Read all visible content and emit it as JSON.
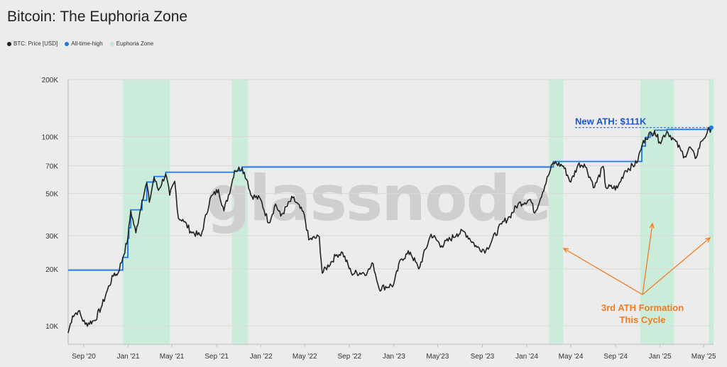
{
  "title": "Bitcoin: The Euphoria Zone",
  "legend": [
    {
      "label": "BTC: Price [USD]",
      "color": "#222222"
    },
    {
      "label": "All-time-high",
      "color": "#1e78e6"
    },
    {
      "label": "Euphoria Zone",
      "color": "#bfe8d2"
    }
  ],
  "watermark": "glassnode",
  "chart_data": {
    "type": "line",
    "title": "Bitcoin: The Euphoria Zone",
    "yscale": "log",
    "ylim": [
      8000,
      200000
    ],
    "xlim": [
      "2020-07-20",
      "2025-05-28"
    ],
    "y_ticks": [
      {
        "v": 10000,
        "label": "10K"
      },
      {
        "v": 20000,
        "label": "20K"
      },
      {
        "v": 30000,
        "label": "30K"
      },
      {
        "v": 50000,
        "label": "50K"
      },
      {
        "v": 70000,
        "label": "70K"
      },
      {
        "v": 100000,
        "label": "100K"
      },
      {
        "v": 200000,
        "label": "200K"
      }
    ],
    "x_ticks": [
      {
        "d": "2020-09-01",
        "label": "Sep '20"
      },
      {
        "d": "2021-01-01",
        "label": "Jan '21"
      },
      {
        "d": "2021-05-01",
        "label": "May '21"
      },
      {
        "d": "2021-09-01",
        "label": "Sep '21"
      },
      {
        "d": "2022-01-01",
        "label": "Jan '22"
      },
      {
        "d": "2022-05-01",
        "label": "May '22"
      },
      {
        "d": "2022-09-01",
        "label": "Sep '22"
      },
      {
        "d": "2023-01-01",
        "label": "Jan '23"
      },
      {
        "d": "2023-05-01",
        "label": "May'23"
      },
      {
        "d": "2023-09-01",
        "label": "Sep '23"
      },
      {
        "d": "2024-01-01",
        "label": "Jan '24"
      },
      {
        "d": "2024-05-01",
        "label": "May '24"
      },
      {
        "d": "2024-09-01",
        "label": "Sep '24"
      },
      {
        "d": "2025-01-01",
        "label": "Jan '25"
      },
      {
        "d": "2025-05-01",
        "label": "May '25"
      }
    ],
    "euphoria_zones": [
      [
        "2020-12-17",
        "2021-04-25"
      ],
      [
        "2021-10-13",
        "2021-11-25"
      ],
      [
        "2024-03-01",
        "2024-04-10"
      ],
      [
        "2024-11-08",
        "2025-02-08"
      ],
      [
        "2025-05-15",
        "2025-05-28"
      ]
    ],
    "series": [
      {
        "name": "BTC: Price [USD]",
        "color": "#222222",
        "points": [
          [
            "2020-07-20",
            9200
          ],
          [
            "2020-08-01",
            11300
          ],
          [
            "2020-08-17",
            12000
          ],
          [
            "2020-09-05",
            10200
          ],
          [
            "2020-10-01",
            10700
          ],
          [
            "2020-10-21",
            12800
          ],
          [
            "2020-11-05",
            15500
          ],
          [
            "2020-11-24",
            19000
          ],
          [
            "2020-12-01",
            18500
          ],
          [
            "2020-12-17",
            22800
          ],
          [
            "2020-12-31",
            29000
          ],
          [
            "2021-01-08",
            40500
          ],
          [
            "2021-01-22",
            31000
          ],
          [
            "2021-02-08",
            46000
          ],
          [
            "2021-02-21",
            57000
          ],
          [
            "2021-02-28",
            45000
          ],
          [
            "2021-03-13",
            61000
          ],
          [
            "2021-03-25",
            52000
          ],
          [
            "2021-04-14",
            63500
          ],
          [
            "2021-04-25",
            49000
          ],
          [
            "2021-05-09",
            58000
          ],
          [
            "2021-05-19",
            37000
          ],
          [
            "2021-05-31",
            36500
          ],
          [
            "2021-06-22",
            31500
          ],
          [
            "2021-07-20",
            29800
          ],
          [
            "2021-08-14",
            47000
          ],
          [
            "2021-09-06",
            52500
          ],
          [
            "2021-09-21",
            40500
          ],
          [
            "2021-10-13",
            57000
          ],
          [
            "2021-10-20",
            66000
          ],
          [
            "2021-11-10",
            68500
          ],
          [
            "2021-11-25",
            58000
          ],
          [
            "2021-12-04",
            49000
          ],
          [
            "2021-12-31",
            46500
          ],
          [
            "2022-01-22",
            35000
          ],
          [
            "2022-02-10",
            44000
          ],
          [
            "2022-02-24",
            38000
          ],
          [
            "2022-03-29",
            47500
          ],
          [
            "2022-04-30",
            38500
          ],
          [
            "2022-05-12",
            28500
          ],
          [
            "2022-06-10",
            29500
          ],
          [
            "2022-06-18",
            19000
          ],
          [
            "2022-07-28",
            23800
          ],
          [
            "2022-08-13",
            24400
          ],
          [
            "2022-09-06",
            19000
          ],
          [
            "2022-10-20",
            19200
          ],
          [
            "2022-11-05",
            21300
          ],
          [
            "2022-11-21",
            15800
          ],
          [
            "2022-12-31",
            16500
          ],
          [
            "2023-01-20",
            22500
          ],
          [
            "2023-02-15",
            24500
          ],
          [
            "2023-03-10",
            20000
          ],
          [
            "2023-04-13",
            30500
          ],
          [
            "2023-05-12",
            26500
          ],
          [
            "2023-06-23",
            30600
          ],
          [
            "2023-07-13",
            31500
          ],
          [
            "2023-08-17",
            26000
          ],
          [
            "2023-09-11",
            25100
          ],
          [
            "2023-10-24",
            34500
          ],
          [
            "2023-11-15",
            37800
          ],
          [
            "2023-12-08",
            44000
          ],
          [
            "2024-01-11",
            46500
          ],
          [
            "2024-01-23",
            39500
          ],
          [
            "2024-02-29",
            62000
          ],
          [
            "2024-03-14",
            73000
          ],
          [
            "2024-04-10",
            70000
          ],
          [
            "2024-05-01",
            57500
          ],
          [
            "2024-05-21",
            71000
          ],
          [
            "2024-06-07",
            71500
          ],
          [
            "2024-07-05",
            54000
          ],
          [
            "2024-07-29",
            69500
          ],
          [
            "2024-08-05",
            54000
          ],
          [
            "2024-09-06",
            53500
          ],
          [
            "2024-09-27",
            66000
          ],
          [
            "2024-10-29",
            72500
          ],
          [
            "2024-11-13",
            90000
          ],
          [
            "2024-11-22",
            98500
          ],
          [
            "2024-12-17",
            107000
          ],
          [
            "2024-12-31",
            93500
          ],
          [
            "2025-01-20",
            106500
          ],
          [
            "2025-02-08",
            96500
          ],
          [
            "2025-02-28",
            84000
          ],
          [
            "2025-03-10",
            78500
          ],
          [
            "2025-03-25",
            88000
          ],
          [
            "2025-04-08",
            76500
          ],
          [
            "2025-04-25",
            94500
          ],
          [
            "2025-05-10",
            104000
          ],
          [
            "2025-05-22",
            111500
          ]
        ]
      },
      {
        "name": "All-time-high",
        "color": "#1e78e6",
        "points": [
          [
            "2020-07-20",
            19700
          ],
          [
            "2020-12-17",
            19700
          ],
          [
            "2020-12-17",
            23000
          ],
          [
            "2020-12-31",
            29000
          ],
          [
            "2021-01-03",
            33000
          ],
          [
            "2021-01-08",
            41000
          ],
          [
            "2021-02-08",
            46000
          ],
          [
            "2021-02-21",
            57500
          ],
          [
            "2021-03-13",
            61500
          ],
          [
            "2021-04-14",
            64800
          ],
          [
            "2021-10-20",
            66000
          ],
          [
            "2021-11-10",
            69000
          ],
          [
            "2024-03-05",
            69000
          ],
          [
            "2024-03-14",
            73800
          ],
          [
            "2024-11-08",
            73800
          ],
          [
            "2024-11-12",
            89000
          ],
          [
            "2024-11-22",
            99000
          ],
          [
            "2024-12-05",
            103500
          ],
          [
            "2024-12-17",
            108000
          ],
          [
            "2025-01-20",
            109000
          ],
          [
            "2025-05-22",
            111500
          ]
        ]
      }
    ],
    "annotations": [
      {
        "text": "New ATH: $111K",
        "color": "#1a55d8"
      },
      {
        "line1": "3rd ATH Formation",
        "line2": "This Cycle",
        "color": "#f07d23"
      }
    ]
  }
}
